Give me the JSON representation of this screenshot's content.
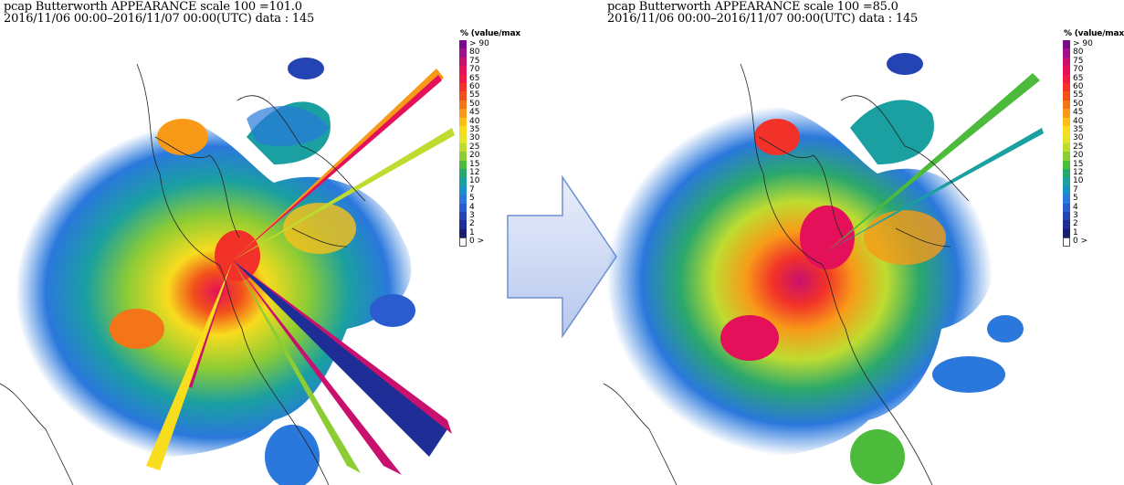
{
  "panels": [
    {
      "title": "pcap Butterworth APPEARANCE scale 100 =101.0",
      "subtitle": "2016/11/06 00:00–2016/11/07 00:00(UTC) data : 145"
    },
    {
      "title": "pcap Butterworth APPEARANCE scale 100 =85.0",
      "subtitle": "2016/11/06 00:00–2016/11/07 00:00(UTC) data : 145"
    }
  ],
  "legend": {
    "title": "% (value/max",
    "items": [
      {
        "label": "> 90",
        "color": "#7a0a8c"
      },
      {
        "label": "80",
        "color": "#a0108a"
      },
      {
        "label": "75",
        "color": "#c8106e"
      },
      {
        "label": "70",
        "color": "#e4105a"
      },
      {
        "label": "65",
        "color": "#f21a44"
      },
      {
        "label": "60",
        "color": "#f23228"
      },
      {
        "label": "55",
        "color": "#f2501a"
      },
      {
        "label": "50",
        "color": "#f47418"
      },
      {
        "label": "45",
        "color": "#f89a18"
      },
      {
        "label": "40",
        "color": "#fac018"
      },
      {
        "label": "35",
        "color": "#f8dc1e"
      },
      {
        "label": "30",
        "color": "#e6e42a"
      },
      {
        "label": "25",
        "color": "#bedc30"
      },
      {
        "label": "20",
        "color": "#8ccc34"
      },
      {
        "label": "15",
        "color": "#4cba3a"
      },
      {
        "label": "12",
        "color": "#2aa86c"
      },
      {
        "label": "10",
        "color": "#1aa0a0"
      },
      {
        "label": "7",
        "color": "#1a90c8"
      },
      {
        "label": "5",
        "color": "#2a78dc"
      },
      {
        "label": "4",
        "color": "#2a5cd0"
      },
      {
        "label": "3",
        "color": "#2444b4"
      },
      {
        "label": "2",
        "color": "#1e2e96"
      },
      {
        "label": "1",
        "color": "#1a1e70"
      },
      {
        "label": "0 >",
        "color": "#ffffff"
      }
    ]
  }
}
